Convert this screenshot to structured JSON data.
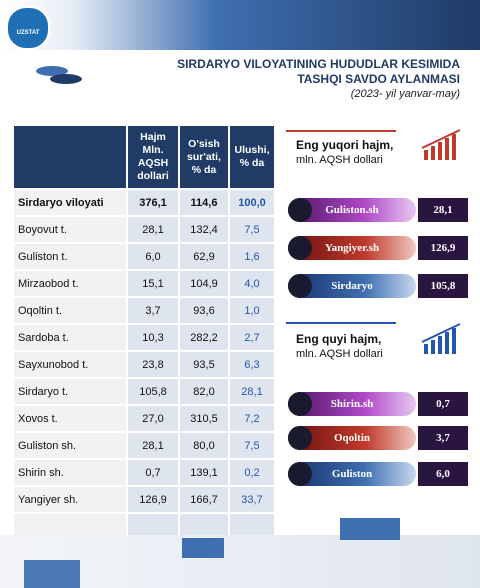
{
  "header": {
    "logo": "UZSTAT",
    "title": "SIRDARYO VILOYATINING HUDUDLAR KESIMIDA TASHQI SAVDO AYLANMASI",
    "period": "(2023- yil yanvar-may)"
  },
  "table": {
    "columns": [
      "",
      "Hajm Mln. AQSH dollari",
      "O'sish sur'ati, % da",
      "Ulushi, % da"
    ],
    "rows": [
      [
        "Sirdaryo viloyati",
        "376,1",
        "114,6",
        "100,0"
      ],
      [
        "Boyovut t.",
        "28,1",
        "132,4",
        "7,5"
      ],
      [
        "Guliston t.",
        "6,0",
        "62,9",
        "1,6"
      ],
      [
        "Mirzaobod t.",
        "15,1",
        "104,9",
        "4,0"
      ],
      [
        "Oqoltin t.",
        "3,7",
        "93,6",
        "1,0"
      ],
      [
        "Sardoba t.",
        "10,3",
        "282,2",
        "2,7"
      ],
      [
        "Sayxunobod t.",
        "23,8",
        "93,5",
        "6,3"
      ],
      [
        "Sirdaryo t.",
        "105,8",
        "82,0",
        "28,1"
      ],
      [
        "Xovos t.",
        "27,0",
        "310,5",
        "7,2"
      ],
      [
        "Guliston sh.",
        "28,1",
        "80,0",
        "7,5"
      ],
      [
        "Shirin sh.",
        "0,7",
        "139,1",
        "0,2"
      ],
      [
        "Yangiyer sh.",
        "126,9",
        "166,7",
        "33,7"
      ]
    ]
  },
  "panels": [
    {
      "title": "Eng yuqori hajm,",
      "subtitle": "mln. AQSH dollari",
      "items": [
        {
          "name": "Guliston.sh",
          "value": "28,1"
        },
        {
          "name": "Yangiyer.sh",
          "value": "126,9"
        },
        {
          "name": "Sirdaryo",
          "value": "105,8"
        }
      ]
    },
    {
      "title": "Eng quyi hajm,",
      "subtitle": "mln. AQSH dollari",
      "items": [
        {
          "name": "Shirin.sh",
          "value": "0,7"
        },
        {
          "name": "Oqoltin",
          "value": "3,7"
        },
        {
          "name": "Guliston",
          "value": "6,0"
        }
      ]
    }
  ]
}
